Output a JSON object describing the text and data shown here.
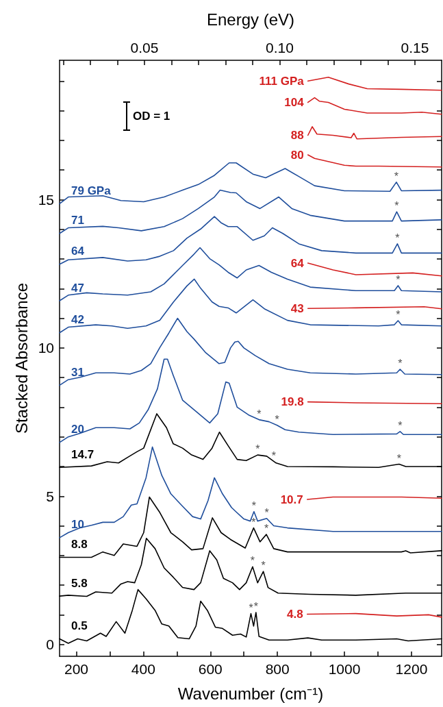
{
  "chart_data": {
    "type": "line",
    "xlabel": "Wavenumber (cm⁻¹)",
    "ylabel": "Stacked Absorbance",
    "x2label": "Energy (eV)",
    "xlim": [
      150,
      1290
    ],
    "ylim": [
      -0.4,
      19.7
    ],
    "x2lim": [
      0.0186,
      0.1599
    ],
    "xticks": [
      200,
      {
        "value": 300,
        "label": null
      },
      400,
      {
        "value": 500,
        "label": null
      },
      600,
      {
        "value": 700,
        "label": null
      },
      800,
      {
        "value": 900,
        "label": null
      },
      1000,
      {
        "value": 1100,
        "label": null
      },
      1200
    ],
    "yticks": [
      0,
      {
        "value": 1,
        "label": null
      },
      {
        "value": 2,
        "label": null
      },
      {
        "value": 3,
        "label": null
      },
      {
        "value": 4,
        "label": null
      },
      5,
      {
        "value": 6,
        "label": null
      },
      {
        "value": 7,
        "label": null
      },
      {
        "value": 8,
        "label": null
      },
      {
        "value": 9,
        "label": null
      },
      10,
      {
        "value": 11,
        "label": null
      },
      {
        "value": 12,
        "label": null
      },
      {
        "value": 13,
        "label": null
      },
      {
        "value": 14,
        "label": null
      },
      15,
      {
        "value": 16,
        "label": null
      },
      {
        "value": 17,
        "label": null
      },
      {
        "value": 18,
        "label": null
      },
      {
        "value": 19,
        "label": null
      }
    ],
    "x2ticks": [
      {
        "value": 0.02,
        "label": null
      },
      {
        "value": 0.03,
        "label": null
      },
      {
        "value": 0.04,
        "label": null
      },
      0.05,
      {
        "value": 0.06,
        "label": null
      },
      {
        "value": 0.07,
        "label": null
      },
      {
        "value": 0.08,
        "label": null
      },
      {
        "value": 0.09,
        "label": null
      },
      {
        "value": 0.1,
        "label": "0.10"
      },
      {
        "value": 0.11,
        "label": null
      },
      {
        "value": 0.12,
        "label": null
      },
      {
        "value": 0.13,
        "label": null
      },
      {
        "value": 0.14,
        "label": null
      },
      0.15
    ],
    "grid": false,
    "legend": false,
    "series": [
      {
        "name": "0.5",
        "color": "#000000",
        "x": [
          150,
          176,
          204,
          231,
          272,
          289,
          319,
          345,
          367,
          384,
          408,
          435,
          455,
          476,
          503,
          537,
          557,
          571,
          591,
          615,
          636,
          666,
          690,
          707,
          721,
          729,
          736,
          745,
          775,
          830,
          891,
          932,
          1034,
          1156,
          1190,
          1290
        ],
        "values": [
          0.19,
          0.04,
          0.19,
          0.12,
          0.38,
          0.27,
          0.77,
          0.38,
          1.15,
          1.85,
          1.54,
          1.15,
          0.69,
          0.62,
          0.23,
          0.19,
          0.62,
          1.46,
          1.15,
          0.58,
          0.54,
          0.31,
          0.35,
          0.25,
          1.04,
          0.62,
          1.08,
          0.27,
          0.15,
          0.15,
          0.22,
          0.15,
          0.15,
          0.19,
          0.12,
          0.19
        ]
      },
      {
        "name": "4.8",
        "color": "#d42020",
        "x": [
          889,
          1034,
          1156,
          1251,
          1290
        ],
        "values": [
          1.02,
          1.04,
          0.96,
          1.0,
          0.92
        ]
      },
      {
        "name": "5.8",
        "color": "#000000",
        "x": [
          150,
          176,
          231,
          258,
          306,
          333,
          353,
          374,
          394,
          409,
          435,
          462,
          489,
          517,
          551,
          571,
          598,
          619,
          639,
          666,
          687,
          707,
          726,
          741,
          758,
          772,
          802,
          898,
          1034,
          1183,
          1290
        ],
        "values": [
          1.63,
          1.66,
          1.62,
          1.77,
          1.73,
          2.04,
          2.12,
          2.08,
          2.69,
          3.58,
          3.23,
          2.58,
          2.27,
          1.92,
          1.85,
          2.08,
          3.16,
          2.85,
          2.23,
          2.08,
          1.85,
          2.08,
          2.62,
          2.08,
          2.46,
          1.92,
          1.73,
          1.69,
          1.66,
          1.73,
          1.73
        ]
      },
      {
        "name": "8.8",
        "color": "#000000",
        "x": [
          150,
          245,
          279,
          313,
          340,
          360,
          381,
          401,
          418,
          448,
          482,
          517,
          544,
          578,
          606,
          632,
          660,
          704,
          729,
          748,
          767,
          789,
          830,
          1034,
          1170,
          1183,
          1197,
          1290
        ],
        "values": [
          2.94,
          2.94,
          3.12,
          3.0,
          3.39,
          3.35,
          3.31,
          3.77,
          4.97,
          4.47,
          3.77,
          3.46,
          3.19,
          3.23,
          4.27,
          3.77,
          3.54,
          3.25,
          3.93,
          3.46,
          3.71,
          3.23,
          3.12,
          3.12,
          3.12,
          3.16,
          3.09,
          3.16
        ]
      },
      {
        "name": "10",
        "color": "#1f4e9c",
        "x": [
          150,
          176,
          211,
          245,
          279,
          313,
          340,
          364,
          381,
          408,
          427,
          455,
          482,
          517,
          547,
          571,
          593,
          612,
          636,
          663,
          677,
          700,
          719,
          730,
          741,
          768,
          789,
          830,
          966,
          1183,
          1290
        ],
        "values": [
          3.6,
          3.77,
          3.93,
          4.02,
          4.12,
          4.12,
          4.31,
          4.7,
          4.74,
          5.62,
          6.66,
          5.7,
          5.08,
          4.66,
          4.31,
          4.23,
          4.85,
          5.62,
          5.08,
          4.62,
          4.47,
          4.23,
          4.16,
          4.48,
          4.16,
          4.25,
          4.0,
          3.93,
          3.81,
          3.81,
          3.81
        ]
      },
      {
        "name": "10.7",
        "color": "#d42020",
        "x": [
          889,
          966,
          1047,
          1170,
          1290
        ],
        "values": [
          4.89,
          4.97,
          4.97,
          4.97,
          4.93
        ]
      },
      {
        "name": "14.7",
        "color": "#000000",
        "x": [
          150,
          245,
          292,
          326,
          353,
          381,
          401,
          440,
          469,
          489,
          517,
          544,
          578,
          605,
          627,
          653,
          680,
          707,
          741,
          768,
          796,
          830,
          966,
          1102,
          1163,
          1183,
          1290
        ],
        "values": [
          5.97,
          6.02,
          6.16,
          6.12,
          6.31,
          6.5,
          6.62,
          7.78,
          7.31,
          6.77,
          6.62,
          6.39,
          6.24,
          6.62,
          7.16,
          6.7,
          6.24,
          6.2,
          6.39,
          6.35,
          6.12,
          6.0,
          5.99,
          5.97,
          6.08,
          6.0,
          6.0
        ]
      },
      {
        "name": "19.8",
        "color": "#d42020",
        "x": [
          891,
          1034,
          1290
        ],
        "values": [
          8.18,
          8.15,
          8.12
        ]
      },
      {
        "name": "20",
        "color": "#1f4e9c",
        "x": [
          150,
          176,
          211,
          258,
          313,
          360,
          388,
          415,
          442,
          462,
          472,
          489,
          517,
          558,
          598,
          622,
          646,
          656,
          680,
          714,
          745,
          775,
          799,
          823,
          864,
          966,
          1156,
          1166,
          1176,
          1290
        ],
        "values": [
          6.81,
          7.0,
          7.12,
          7.31,
          7.31,
          7.27,
          7.47,
          7.93,
          8.62,
          9.62,
          9.62,
          9.08,
          8.24,
          7.85,
          7.47,
          7.78,
          8.85,
          8.81,
          8.0,
          7.74,
          7.58,
          7.51,
          7.39,
          7.24,
          7.16,
          7.08,
          7.1,
          7.18,
          7.08,
          7.08
        ]
      },
      {
        "name": "31",
        "color": "#1f4e9c",
        "x": [
          150,
          176,
          211,
          258,
          313,
          360,
          394,
          422,
          449,
          476,
          502,
          530,
          551,
          585,
          626,
          643,
          660,
          673,
          683,
          700,
          734,
          775,
          830,
          898,
          1034,
          1156,
          1166,
          1180,
          1290
        ],
        "values": [
          8.74,
          8.93,
          9.01,
          9.16,
          9.16,
          9.12,
          9.24,
          9.47,
          10.01,
          10.5,
          11.0,
          10.55,
          10.3,
          9.85,
          9.47,
          9.51,
          10.0,
          10.2,
          10.22,
          10.0,
          9.74,
          9.47,
          9.28,
          9.16,
          9.12,
          9.16,
          9.28,
          9.12,
          9.1
        ]
      },
      {
        "name": "42",
        "color": "#1f4e9c",
        "x": [
          150,
          176,
          258,
          306,
          353,
          408,
          449,
          490,
          530,
          552,
          571,
          605,
          626,
          653,
          677,
          727,
          761,
          830,
          898,
          1102,
          1149,
          1160,
          1170,
          1290
        ],
        "values": [
          10.51,
          10.7,
          10.78,
          10.74,
          10.66,
          10.74,
          10.93,
          11.55,
          12.09,
          12.32,
          12.01,
          11.55,
          11.4,
          11.35,
          11.18,
          11.62,
          11.32,
          10.93,
          10.78,
          10.74,
          10.78,
          10.92,
          10.78,
          10.74
        ]
      },
      {
        "name": "43",
        "color": "#d42020",
        "x": [
          891,
          1034,
          1238,
          1290
        ],
        "values": [
          11.33,
          11.35,
          11.39,
          11.32
        ]
      },
      {
        "name": "47",
        "color": "#1f4e9c",
        "x": [
          150,
          176,
          231,
          279,
          353,
          422,
          462,
          517,
          551,
          569,
          598,
          626,
          653,
          680,
          707,
          745,
          782,
          830,
          898,
          1034,
          1149,
          1160,
          1170,
          1290
        ],
        "values": [
          11.59,
          11.78,
          11.86,
          11.82,
          11.78,
          11.89,
          12.16,
          12.78,
          13.16,
          13.38,
          13.01,
          12.8,
          12.55,
          12.36,
          12.63,
          12.78,
          12.55,
          12.32,
          12.05,
          11.93,
          11.93,
          12.1,
          11.93,
          11.89
        ]
      },
      {
        "name": "64",
        "color": "#d42020",
        "x": [
          891,
          966,
          1034,
          1204,
          1290
        ],
        "values": [
          12.86,
          12.63,
          12.47,
          12.53,
          12.43
        ]
      },
      {
        "name": "64",
        "color": "#1f4e9c",
        "x": [
          150,
          176,
          279,
          353,
          408,
          449,
          490,
          530,
          571,
          612,
          632,
          653,
          680,
          727,
          761,
          785,
          816,
          864,
          932,
          1034,
          1143,
          1158,
          1170,
          1290
        ],
        "values": [
          12.82,
          12.97,
          13.05,
          12.93,
          12.97,
          13.09,
          13.28,
          13.7,
          14.01,
          14.43,
          14.22,
          14.09,
          14.09,
          13.63,
          13.78,
          14.05,
          13.86,
          13.51,
          13.28,
          13.2,
          13.2,
          13.51,
          13.2,
          13.2
        ]
      },
      {
        "name": "71",
        "color": "#1f4e9c",
        "x": [
          150,
          176,
          279,
          326,
          394,
          462,
          517,
          564,
          612,
          629,
          660,
          677,
          707,
          748,
          804,
          843,
          898,
          1000,
          1143,
          1156,
          1170,
          1290
        ],
        "values": [
          13.86,
          14.05,
          14.1,
          14.05,
          13.95,
          14.09,
          14.36,
          14.7,
          15.09,
          15.32,
          15.24,
          15.23,
          14.93,
          14.7,
          15.09,
          14.7,
          14.47,
          14.28,
          14.28,
          14.59,
          14.28,
          14.32
        ]
      },
      {
        "name": "79 GPa",
        "color": "#1f4e9c",
        "x": [
          150,
          176,
          279,
          333,
          401,
          462,
          517,
          564,
          612,
          656,
          677,
          727,
          765,
          823,
          864,
          911,
          1000,
          1136,
          1155,
          1170,
          1290
        ],
        "values": [
          14.86,
          15.09,
          15.13,
          14.97,
          14.93,
          15.09,
          15.32,
          15.51,
          15.82,
          16.24,
          16.24,
          15.86,
          15.74,
          16.05,
          15.78,
          15.47,
          15.3,
          15.28,
          15.59,
          15.3,
          15.32
        ]
      },
      {
        "name": "80",
        "color": "#d42020",
        "x": [
          891,
          911,
          938,
          1000,
          1034,
          1102,
          1290
        ],
        "values": [
          16.51,
          16.39,
          16.32,
          16.16,
          16.13,
          16.13,
          16.1
        ]
      },
      {
        "name": "88",
        "color": "#d42020",
        "x": [
          891,
          904,
          918,
          966,
          1020,
          1028,
          1037,
          1170,
          1290
        ],
        "values": [
          17.17,
          17.46,
          17.21,
          17.17,
          17.09,
          17.24,
          17.05,
          17.1,
          17.13
        ]
      },
      {
        "name": "104",
        "color": "#d42020",
        "x": [
          891,
          911,
          925,
          952,
          1000,
          1068,
          1170,
          1231,
          1290
        ],
        "values": [
          18.28,
          18.44,
          18.32,
          18.28,
          18.05,
          17.92,
          17.92,
          17.95,
          17.88
        ]
      },
      {
        "name": "111 GPa",
        "color": "#d42020",
        "x": [
          891,
          952,
          1013,
          1068,
          1170,
          1290
        ],
        "values": [
          19.0,
          19.13,
          18.9,
          18.74,
          18.72,
          18.69
        ]
      }
    ],
    "annotations": [
      "OD = 1",
      {
        "text": "*",
        "x": 721,
        "y": 1.04
      },
      {
        "text": "*",
        "x": 736,
        "y": 1.08
      },
      {
        "text": "*",
        "x": 726,
        "y": 2.62
      },
      {
        "text": "*",
        "x": 758,
        "y": 2.46
      },
      {
        "text": "*",
        "x": 729,
        "y": 3.93
      },
      {
        "text": "*",
        "x": 767,
        "y": 3.71
      },
      {
        "text": "*",
        "x": 730,
        "y": 4.48
      },
      {
        "text": "*",
        "x": 768,
        "y": 4.25
      },
      {
        "text": "*",
        "x": 741,
        "y": 6.39
      },
      {
        "text": "*",
        "x": 789,
        "y": 6.16
      },
      {
        "text": "*",
        "x": 1163,
        "y": 6.08
      },
      {
        "text": "*",
        "x": 745,
        "y": 7.58
      },
      {
        "text": "*",
        "x": 799,
        "y": 7.39
      },
      {
        "text": "*",
        "x": 1166,
        "y": 7.18
      },
      {
        "text": "*",
        "x": 1166,
        "y": 9.28
      },
      {
        "text": "*",
        "x": 1160,
        "y": 10.92
      },
      {
        "text": "*",
        "x": 1160,
        "y": 12.1
      },
      {
        "text": "*",
        "x": 1158,
        "y": 13.51
      },
      {
        "text": "*",
        "x": 1156,
        "y": 14.59
      },
      {
        "text": "*",
        "x": 1155,
        "y": 15.59
      }
    ]
  }
}
